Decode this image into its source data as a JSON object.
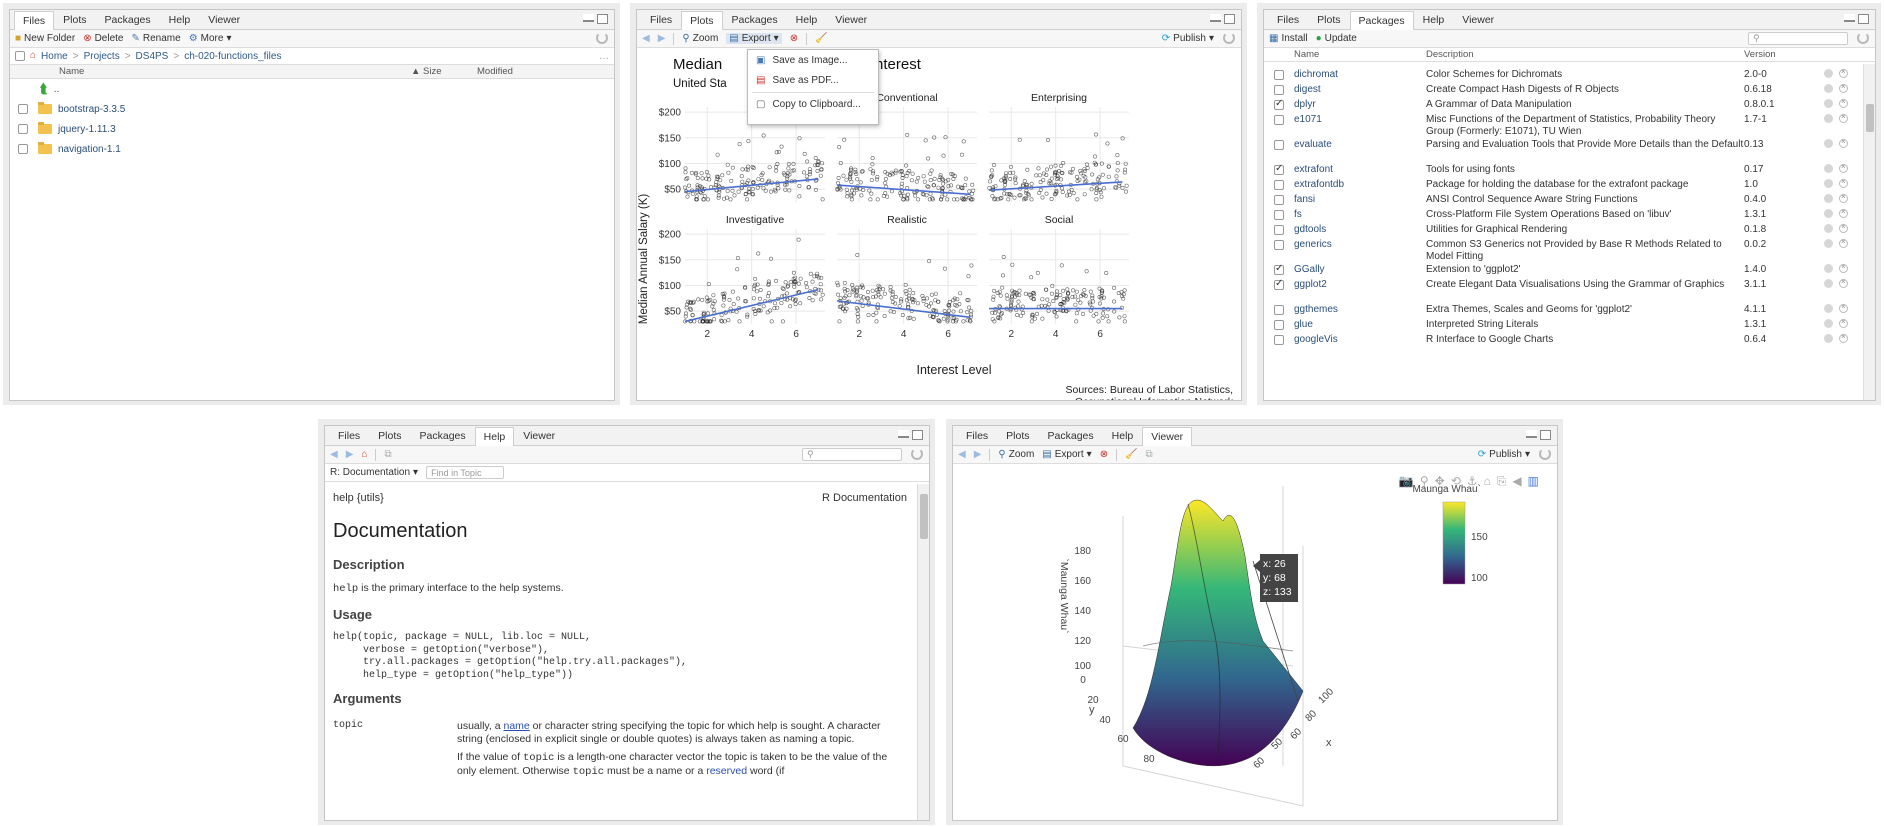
{
  "files_pane": {
    "tabs": [
      "Files",
      "Plots",
      "Packages",
      "Help",
      "Viewer"
    ],
    "toolbar": {
      "new_folder": "New Folder",
      "delete": "Delete",
      "rename": "Rename",
      "more": "More"
    },
    "breadcrumb": [
      "Home",
      "Projects",
      "DS4PS",
      "ch-020-functions_files"
    ],
    "columns": {
      "name": "Name",
      "size": "Size",
      "modified": "Modified"
    },
    "parent": "..",
    "items": [
      "bootstrap-3.3.5",
      "jquery-1.11.3",
      "navigation-1.1"
    ]
  },
  "plots_pane": {
    "tabs": [
      "Files",
      "Plots",
      "Packages",
      "Help",
      "Viewer"
    ],
    "toolbar": {
      "zoom": "Zoom",
      "export": "Export",
      "publish": "Publish"
    },
    "export_menu": [
      "Save as Image...",
      "Save as PDF...",
      "Copy to Clipboard..."
    ],
    "plot": {
      "title_left": "Median",
      "title_right": "as of interest",
      "subtitle": "United Sta",
      "ylabel": "Median Annual Salary (K)",
      "xlabel": "Interest Level",
      "source1": "Sources: Bureau of Labor Statistics,",
      "source2": "Occupational Information Network",
      "y_ticks": [
        "$200",
        "$150",
        "$100",
        "$50"
      ],
      "x_ticks": [
        "2",
        "4",
        "6"
      ],
      "facets": [
        "",
        "Conventional",
        "Enterprising",
        "Investigative",
        "Realistic",
        "Social"
      ]
    }
  },
  "chart_data": {
    "type": "scatter",
    "title": "",
    "xlabel": "Interest Level",
    "ylabel": "Median Annual Salary (K)",
    "xlim": [
      1,
      7.3
    ],
    "ylim": [
      25,
      210
    ],
    "facets": [
      {
        "name": "",
        "trend": [
          [
            1,
            45
          ],
          [
            7,
            70
          ]
        ]
      },
      {
        "name": "Conventional",
        "trend": [
          [
            1,
            58
          ],
          [
            7,
            40
          ]
        ]
      },
      {
        "name": "Enterprising",
        "trend": [
          [
            1,
            48
          ],
          [
            7,
            64
          ]
        ]
      },
      {
        "name": "Investigative",
        "trend": [
          [
            1,
            30
          ],
          [
            7,
            92
          ]
        ]
      },
      {
        "name": "Realistic",
        "trend": [
          [
            1,
            70
          ],
          [
            7,
            38
          ]
        ]
      },
      {
        "name": "Social",
        "trend": [
          [
            1,
            55
          ],
          [
            7,
            55
          ]
        ]
      }
    ]
  },
  "packages_pane": {
    "tabs": [
      "Files",
      "Plots",
      "Packages",
      "Help",
      "Viewer"
    ],
    "toolbar": {
      "install": "Install",
      "update": "Update"
    },
    "columns": {
      "name": "Name",
      "description": "Description",
      "version": "Version"
    },
    "rows": [
      {
        "name": "dichromat",
        "desc": "Color Schemes for Dichromats",
        "ver": "2.0-0",
        "checked": false
      },
      {
        "name": "digest",
        "desc": "Create Compact Hash Digests of R Objects",
        "ver": "0.6.18",
        "checked": false
      },
      {
        "name": "dplyr",
        "desc": "A Grammar of Data Manipulation",
        "ver": "0.8.0.1",
        "checked": true
      },
      {
        "name": "e1071",
        "desc": "Misc Functions of the Department of Statistics, Probability Theory Group (Formerly: E1071), TU Wien",
        "ver": "1.7-1",
        "checked": false
      },
      {
        "name": "evaluate",
        "desc": "Parsing and Evaluation Tools that Provide More Details than the Default",
        "ver": "0.13",
        "checked": false
      },
      {
        "name": "extrafont",
        "desc": "Tools for using fonts",
        "ver": "0.17",
        "checked": true
      },
      {
        "name": "extrafontdb",
        "desc": "Package for holding the database for the extrafont package",
        "ver": "1.0",
        "checked": false
      },
      {
        "name": "fansi",
        "desc": "ANSI Control Sequence Aware String Functions",
        "ver": "0.4.0",
        "checked": false
      },
      {
        "name": "fs",
        "desc": "Cross-Platform File System Operations Based on 'libuv'",
        "ver": "1.3.1",
        "checked": false
      },
      {
        "name": "gdtools",
        "desc": "Utilities for Graphical Rendering",
        "ver": "0.1.8",
        "checked": false
      },
      {
        "name": "generics",
        "desc": "Common S3 Generics not Provided by Base R Methods Related to Model Fitting",
        "ver": "0.0.2",
        "checked": false
      },
      {
        "name": "GGally",
        "desc": "Extension to 'ggplot2'",
        "ver": "1.4.0",
        "checked": true
      },
      {
        "name": "ggplot2",
        "desc": "Create Elegant Data Visualisations Using the Grammar of Graphics",
        "ver": "3.1.1",
        "checked": true
      },
      {
        "name": "ggthemes",
        "desc": "Extra Themes, Scales and Geoms for 'ggplot2'",
        "ver": "4.1.1",
        "checked": false
      },
      {
        "name": "glue",
        "desc": "Interpreted String Literals",
        "ver": "1.3.1",
        "checked": false
      },
      {
        "name": "googleVis",
        "desc": "R Interface to Google Charts",
        "ver": "0.6.4",
        "checked": false
      }
    ]
  },
  "help_pane": {
    "tabs": [
      "Files",
      "Plots",
      "Packages",
      "Help",
      "Viewer"
    ],
    "topic_select": "R: Documentation",
    "find_placeholder": "Find in Topic",
    "header_left": "help {utils}",
    "header_right": "R Documentation",
    "title": "Documentation",
    "h_description": "Description",
    "description_code": "help",
    "description_text": " is the primary interface to the help systems.",
    "h_usage": "Usage",
    "usage": "help(topic, package = NULL, lib.loc = NULL,\n     verbose = getOption(\"verbose\"),\n     try.all.packages = getOption(\"help.try.all.packages\"),\n     help_type = getOption(\"help_type\"))",
    "h_arguments": "Arguments",
    "arg_name": "topic",
    "arg_p1_a": "usually, a ",
    "arg_p1_link": "name",
    "arg_p1_b": " or character string specifying the topic for which help is sought. A character string (enclosed in explicit single or double quotes) is always taken as naming a topic.",
    "arg_p2_a": "If the value of ",
    "arg_p2_code": "topic",
    "arg_p2_b": " is a length-one character vector the topic is taken to be the value of the only element. Otherwise ",
    "arg_p2_code2": "topic",
    "arg_p2_c": " must be a name or a ",
    "arg_p2_link": "reserved",
    "arg_p2_d": " word (if"
  },
  "viewer_pane": {
    "tabs": [
      "Files",
      "Plots",
      "Packages",
      "Help",
      "Viewer"
    ],
    "toolbar": {
      "zoom": "Zoom",
      "export": "Export",
      "publish": "Publish"
    },
    "colorbar_title": "`Maunga Whau`",
    "colorbar_ticks": [
      "150",
      "100"
    ],
    "z_title": "`Maunga Whau`",
    "z_ticks": [
      "180",
      "160",
      "140",
      "120",
      "100"
    ],
    "y_title": "y",
    "y_ticks": [
      "0",
      "20",
      "40",
      "60",
      "80"
    ],
    "x_title": "x",
    "x_ticks": [
      "100",
      "80",
      "60",
      "50",
      "60"
    ],
    "tooltip": [
      "x: 26",
      "y: 68",
      "z: 133"
    ],
    "colors": [
      "#440154",
      "#31688e",
      "#35b779",
      "#fde725"
    ]
  }
}
